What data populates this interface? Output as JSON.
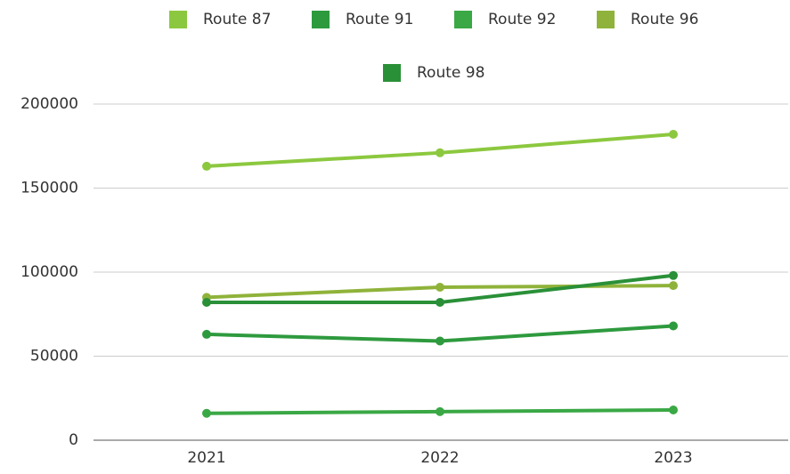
{
  "chart_data": {
    "type": "line",
    "categories": [
      "2021",
      "2022",
      "2023"
    ],
    "series": [
      {
        "name": "Route 87",
        "color": "#8cc83f",
        "values": [
          163000,
          171000,
          182000
        ]
      },
      {
        "name": "Route 91",
        "color": "#2e9a3e",
        "values": [
          63000,
          59000,
          68000
        ]
      },
      {
        "name": "Route 92",
        "color": "#3aa845",
        "values": [
          16000,
          17000,
          18000
        ]
      },
      {
        "name": "Route 96",
        "color": "#8fb33a",
        "values": [
          85000,
          91000,
          92000
        ]
      },
      {
        "name": "Route 98",
        "color": "#2a9038",
        "values": [
          82000,
          82000,
          98000
        ]
      }
    ],
    "ylim": [
      0,
      200000
    ],
    "yticks": [
      0,
      50000,
      100000,
      150000,
      200000
    ],
    "grid": true,
    "legend": "top"
  }
}
